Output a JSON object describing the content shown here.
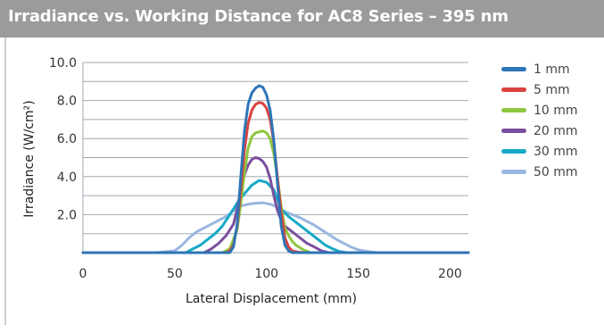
{
  "header": {
    "title": "Irradiance vs. Working Distance for AC8 Series – 395 nm"
  },
  "chart_data": {
    "type": "line",
    "title": "Irradiance vs. Working Distance for AC8 Series – 395 nm",
    "xlabel": "Lateral Displacement (mm)",
    "ylabel": "Irradiance (W/cm²)",
    "xlim": [
      0,
      210
    ],
    "ylim": [
      0,
      10
    ],
    "x_ticks": [
      "0",
      "50",
      "100",
      "150",
      "200"
    ],
    "y_ticks": [
      "2.0",
      "4.0",
      "6.0",
      "8.0",
      "10.0"
    ],
    "grid": true,
    "legend": "right",
    "series": [
      {
        "name": "1 mm",
        "color": "#2e75b6",
        "x": [
          0,
          80,
          82,
          84,
          86,
          88,
          90,
          92,
          94,
          96,
          98,
          100,
          102,
          104,
          106,
          108,
          110,
          112,
          114,
          116,
          210
        ],
        "y": [
          0,
          0,
          0.3,
          1.5,
          4.0,
          6.4,
          7.8,
          8.4,
          8.65,
          8.78,
          8.7,
          8.3,
          7.5,
          5.9,
          3.6,
          1.4,
          0.4,
          0.1,
          0,
          0,
          0
        ]
      },
      {
        "name": "5 mm",
        "color": "#d9423f",
        "x": [
          0,
          78,
          80,
          82,
          84,
          86,
          88,
          90,
          92,
          94,
          96,
          98,
          100,
          102,
          104,
          106,
          108,
          110,
          112,
          114,
          116,
          120,
          210
        ],
        "y": [
          0,
          0,
          0.1,
          0.4,
          1.4,
          3.3,
          5.4,
          6.8,
          7.5,
          7.8,
          7.9,
          7.85,
          7.6,
          7.0,
          5.8,
          3.9,
          2.1,
          0.8,
          0.3,
          0.1,
          0.05,
          0,
          0
        ]
      },
      {
        "name": "10 mm",
        "color": "#8dc63f",
        "x": [
          0,
          76,
          80,
          84,
          86,
          88,
          90,
          92,
          94,
          96,
          98,
          100,
          102,
          104,
          106,
          108,
          110,
          112,
          114,
          116,
          120,
          124,
          210
        ],
        "y": [
          0,
          0,
          0.2,
          1.2,
          2.6,
          4.2,
          5.5,
          6.1,
          6.3,
          6.35,
          6.4,
          6.3,
          6.0,
          5.2,
          3.9,
          2.4,
          1.3,
          0.9,
          0.6,
          0.4,
          0.15,
          0,
          0
        ]
      },
      {
        "name": "20 mm",
        "color": "#7a4f9e",
        "x": [
          0,
          66,
          70,
          74,
          78,
          82,
          84,
          86,
          88,
          90,
          92,
          94,
          96,
          98,
          100,
          102,
          104,
          106,
          108,
          110,
          114,
          118,
          122,
          126,
          130,
          134,
          210
        ],
        "y": [
          0,
          0,
          0.2,
          0.5,
          0.9,
          1.5,
          2.3,
          3.3,
          4.1,
          4.6,
          4.9,
          5.0,
          4.95,
          4.8,
          4.5,
          3.9,
          3.0,
          2.2,
          1.7,
          1.4,
          1.1,
          0.8,
          0.5,
          0.3,
          0.1,
          0,
          0
        ]
      },
      {
        "name": "30 mm",
        "color": "#17a9c6",
        "x": [
          0,
          56,
          60,
          64,
          68,
          72,
          76,
          80,
          84,
          88,
          92,
          96,
          100,
          104,
          108,
          112,
          116,
          120,
          124,
          128,
          132,
          136,
          140,
          144,
          210
        ],
        "y": [
          0,
          0,
          0.2,
          0.4,
          0.7,
          1.0,
          1.4,
          2.0,
          2.6,
          3.1,
          3.55,
          3.8,
          3.7,
          3.3,
          2.3,
          1.9,
          1.6,
          1.3,
          1.0,
          0.7,
          0.4,
          0.2,
          0.05,
          0,
          0
        ]
      },
      {
        "name": "50 mm",
        "color": "#99b6e0",
        "x": [
          0,
          40,
          50,
          54,
          58,
          62,
          66,
          70,
          74,
          78,
          82,
          86,
          90,
          94,
          98,
          102,
          106,
          110,
          114,
          118,
          122,
          126,
          130,
          134,
          138,
          142,
          146,
          150,
          156,
          160,
          210
        ],
        "y": [
          0,
          0,
          0.1,
          0.4,
          0.8,
          1.1,
          1.3,
          1.5,
          1.7,
          1.9,
          2.2,
          2.45,
          2.55,
          2.6,
          2.62,
          2.55,
          2.4,
          2.15,
          2.0,
          1.85,
          1.65,
          1.45,
          1.2,
          0.95,
          0.7,
          0.5,
          0.3,
          0.15,
          0.05,
          0,
          0
        ]
      }
    ]
  }
}
